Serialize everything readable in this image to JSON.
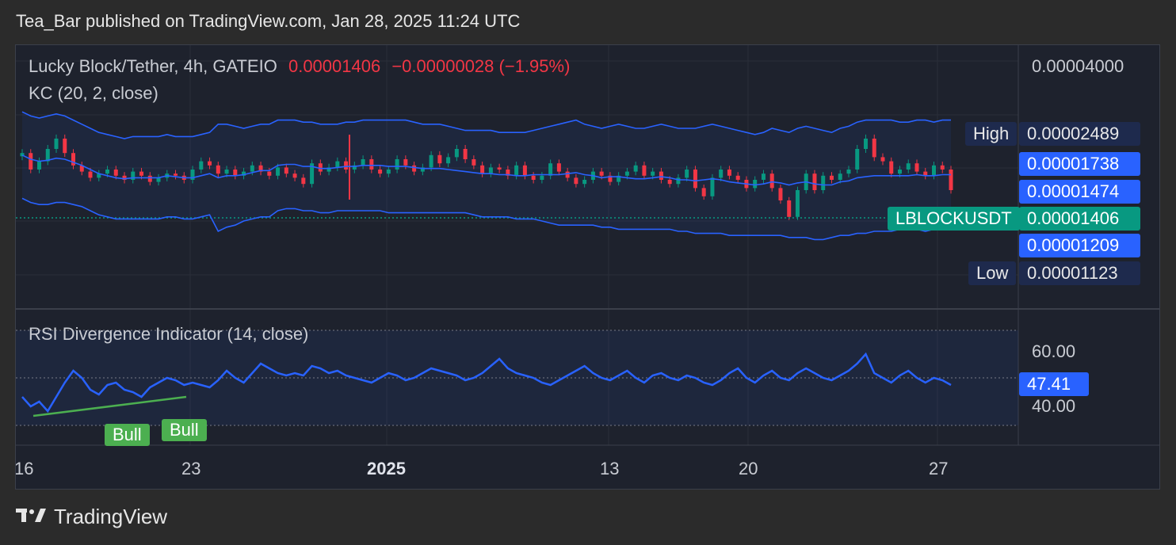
{
  "header": {
    "text": "Tea_Bar published on TradingView.com, Jan 28, 2025 11:24 UTC"
  },
  "legend": {
    "symbol": "Lucky Block/Tether, 4h, GATEIO",
    "price": "0.00001406",
    "change": "−0.00000028 (−1.95%)",
    "indicator": "KC (20, 2, close)",
    "rsi_indicator": "RSI Divergence Indicator (14, close)"
  },
  "price_axis": {
    "top": "0.00004000",
    "high_label": "High",
    "high_value": "0.00002489",
    "upper_kc": "0.00001738",
    "mid_kc": "0.00001474",
    "symbol_tag": "LBLOCKUSDT",
    "last_price": "0.00001406",
    "lower_kc": "0.00001209",
    "low_label": "Low",
    "low_value": "0.00001123"
  },
  "rsi_axis": {
    "upper": "60.00",
    "current": "47.41",
    "lower": "40.00"
  },
  "time_axis": [
    "16",
    "23",
    "2025",
    "13",
    "20",
    "27"
  ],
  "bull_labels": [
    "Bull",
    "Bull"
  ],
  "footer": {
    "brand": "TradingView"
  },
  "colors": {
    "up": "#089981",
    "down": "#f23645",
    "kc": "#2962ff",
    "rsi": "#2962ff",
    "bull": "#4caf50",
    "background": "#1e222d"
  },
  "chart_data": [
    {
      "type": "candlestick",
      "title": "Lucky Block/Tether, 4h, GATEIO",
      "indicator": "KC (20, 2, close)",
      "x_tick_labels": [
        "16",
        "23",
        "2025",
        "13",
        "20",
        "27"
      ],
      "ylim": [
        3e-06,
        4e-05
      ],
      "high": 2.489e-05,
      "low": 1.123e-05,
      "last": 1.406e-05,
      "kc_upper": 1.738e-05,
      "kc_middle": 1.474e-05,
      "kc_lower": 1.209e-05,
      "close_series": [
        1.58e-05,
        1.5e-05,
        1.54e-05,
        1.6e-05,
        1.65e-05,
        1.58e-05,
        1.52e-05,
        1.49e-05,
        1.46e-05,
        1.48e-05,
        1.5e-05,
        1.47e-05,
        1.45e-05,
        1.49e-05,
        1.47e-05,
        1.44e-05,
        1.46e-05,
        1.48e-05,
        1.47e-05,
        1.45e-05,
        1.5e-05,
        1.54e-05,
        1.52e-05,
        1.48e-05,
        1.5e-05,
        1.47e-05,
        1.49e-05,
        1.52e-05,
        1.49e-05,
        1.47e-05,
        1.51e-05,
        1.48e-05,
        1.46e-05,
        1.43e-05,
        1.53e-05,
        1.49e-05,
        1.51e-05,
        1.54e-05,
        1.5e-05,
        1.52e-05,
        1.55e-05,
        1.5e-05,
        1.48e-05,
        1.5e-05,
        1.55e-05,
        1.52e-05,
        1.49e-05,
        1.51e-05,
        1.57e-05,
        1.53e-05,
        1.56e-05,
        1.6e-05,
        1.55e-05,
        1.52e-05,
        1.48e-05,
        1.51e-05,
        1.5e-05,
        1.47e-05,
        1.52e-05,
        1.47e-05,
        1.45e-05,
        1.47e-05,
        1.53e-05,
        1.49e-05,
        1.46e-05,
        1.43e-05,
        1.45e-05,
        1.49e-05,
        1.47e-05,
        1.44e-05,
        1.47e-05,
        1.49e-05,
        1.52e-05,
        1.47e-05,
        1.49e-05,
        1.45e-05,
        1.43e-05,
        1.46e-05,
        1.5e-05,
        1.41e-05,
        1.37e-05,
        1.46e-05,
        1.5e-05,
        1.47e-05,
        1.45e-05,
        1.41e-05,
        1.45e-05,
        1.48e-05,
        1.41e-05,
        1.35e-05,
        1.27e-05,
        1.4e-05,
        1.48e-05,
        1.4e-05,
        1.47e-05,
        1.45e-05,
        1.48e-05,
        1.5e-05,
        1.6e-05,
        1.65e-05,
        1.56e-05,
        1.54e-05,
        1.48e-05,
        1.5e-05,
        1.53e-05,
        1.49e-05,
        1.47e-05,
        1.52e-05,
        1.5e-05,
        1.4e-05
      ],
      "kc_upper_series": [
        1.78e-05,
        1.76e-05,
        1.75e-05,
        1.76e-05,
        1.77e-05,
        1.76e-05,
        1.74e-05,
        1.72e-05,
        1.7e-05,
        1.68e-05,
        1.67e-05,
        1.66e-05,
        1.65e-05,
        1.66e-05,
        1.66e-05,
        1.66e-05,
        1.66e-05,
        1.67e-05,
        1.66e-05,
        1.66e-05,
        1.66e-05,
        1.67e-05,
        1.68e-05,
        1.72e-05,
        1.72e-05,
        1.71e-05,
        1.7e-05,
        1.71e-05,
        1.72e-05,
        1.72e-05,
        1.74e-05,
        1.74e-05,
        1.74e-05,
        1.73e-05,
        1.73e-05,
        1.72e-05,
        1.72e-05,
        1.72e-05,
        1.73e-05,
        1.73e-05,
        1.74e-05,
        1.74e-05,
        1.74e-05,
        1.74e-05,
        1.74e-05,
        1.74e-05,
        1.73e-05,
        1.72e-05,
        1.72e-05,
        1.72e-05,
        1.71e-05,
        1.7e-05,
        1.69e-05,
        1.69e-05,
        1.69e-05,
        1.69e-05,
        1.68e-05,
        1.68e-05,
        1.68e-05,
        1.68e-05,
        1.69e-05,
        1.7e-05,
        1.71e-05,
        1.72e-05,
        1.73e-05,
        1.74e-05,
        1.72e-05,
        1.71e-05,
        1.7e-05,
        1.71e-05,
        1.72e-05,
        1.71e-05,
        1.7e-05,
        1.7e-05,
        1.71e-05,
        1.72e-05,
        1.71e-05,
        1.7e-05,
        1.7e-05,
        1.7e-05,
        1.71e-05,
        1.72e-05,
        1.71e-05,
        1.7e-05,
        1.69e-05,
        1.68e-05,
        1.67e-05,
        1.68e-05,
        1.7e-05,
        1.69e-05,
        1.68e-05,
        1.7e-05,
        1.71e-05,
        1.7e-05,
        1.69e-05,
        1.68e-05,
        1.7e-05,
        1.71e-05,
        1.73e-05,
        1.74e-05,
        1.74e-05,
        1.74e-05,
        1.74e-05,
        1.73e-05,
        1.73e-05,
        1.74e-05,
        1.74e-05,
        1.73e-05,
        1.74e-05,
        1.74e-05
      ],
      "kc_lower_series": [
        1.36e-05,
        1.34e-05,
        1.33e-05,
        1.33e-05,
        1.34e-05,
        1.34e-05,
        1.33e-05,
        1.32e-05,
        1.3e-05,
        1.28e-05,
        1.27e-05,
        1.26e-05,
        1.26e-05,
        1.26e-05,
        1.26e-05,
        1.26e-05,
        1.26e-05,
        1.27e-05,
        1.27e-05,
        1.26e-05,
        1.26e-05,
        1.27e-05,
        1.28e-05,
        1.2e-05,
        1.22e-05,
        1.23e-05,
        1.25e-05,
        1.26e-05,
        1.27e-05,
        1.27e-05,
        1.3e-05,
        1.31e-05,
        1.31e-05,
        1.3e-05,
        1.3e-05,
        1.29e-05,
        1.29e-05,
        1.3e-05,
        1.3e-05,
        1.3e-05,
        1.3e-05,
        1.3e-05,
        1.3e-05,
        1.29e-05,
        1.29e-05,
        1.29e-05,
        1.29e-05,
        1.29e-05,
        1.29e-05,
        1.29e-05,
        1.29e-05,
        1.29e-05,
        1.29e-05,
        1.28e-05,
        1.27e-05,
        1.27e-05,
        1.27e-05,
        1.27e-05,
        1.26e-05,
        1.26e-05,
        1.26e-05,
        1.25e-05,
        1.24e-05,
        1.23e-05,
        1.23e-05,
        1.23e-05,
        1.23e-05,
        1.23e-05,
        1.22e-05,
        1.22e-05,
        1.21e-05,
        1.21e-05,
        1.21e-05,
        1.21e-05,
        1.21e-05,
        1.21e-05,
        1.21e-05,
        1.2e-05,
        1.2e-05,
        1.19e-05,
        1.19e-05,
        1.19e-05,
        1.19e-05,
        1.18e-05,
        1.18e-05,
        1.18e-05,
        1.18e-05,
        1.18e-05,
        1.18e-05,
        1.18e-05,
        1.17e-05,
        1.17e-05,
        1.17e-05,
        1.16e-05,
        1.16e-05,
        1.17e-05,
        1.18e-05,
        1.18e-05,
        1.19e-05,
        1.19e-05,
        1.2e-05,
        1.2e-05,
        1.2e-05,
        1.21e-05,
        1.21e-05,
        1.21e-05,
        1.2e-05,
        1.21e-05,
        1.21e-05,
        1.21e-05
      ]
    },
    {
      "type": "line",
      "title": "RSI Divergence Indicator (14, close)",
      "x_tick_labels": [
        "16",
        "23",
        "2025",
        "13",
        "20",
        "27"
      ],
      "ylim": [
        20,
        80
      ],
      "reference_lines": [
        60,
        40
      ],
      "current": 47.41,
      "series": [
        {
          "values": [
            42,
            38,
            40,
            36,
            42,
            48,
            53,
            50,
            45,
            43,
            47,
            48,
            45,
            44,
            42,
            46,
            48,
            50,
            49,
            47,
            48,
            47,
            46,
            49,
            53,
            50,
            48,
            52,
            56,
            54,
            52,
            51,
            52,
            51,
            55,
            54,
            52,
            53,
            51,
            50,
            49,
            48,
            50,
            52,
            51,
            49,
            50,
            52,
            54,
            53,
            52,
            51,
            49,
            50,
            52,
            55,
            58,
            54,
            52,
            51,
            50,
            48,
            47,
            49,
            51,
            53,
            55,
            52,
            50,
            49,
            51,
            53,
            50,
            48,
            51,
            52,
            50,
            49,
            51,
            50,
            48,
            47,
            49,
            52,
            54,
            50,
            48,
            51,
            53,
            50,
            49,
            52,
            54,
            52,
            50,
            49,
            51,
            53,
            56,
            60,
            52,
            50,
            48,
            51,
            53,
            50,
            48,
            50,
            49,
            47
          ]
        }
      ]
    }
  ]
}
